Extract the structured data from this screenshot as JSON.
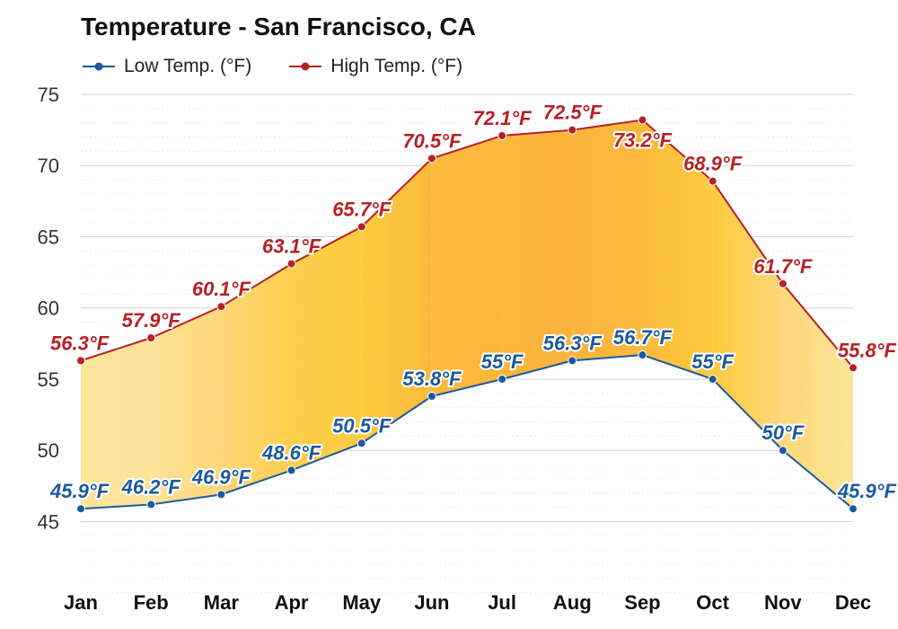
{
  "chart_data": {
    "type": "area",
    "title": "Temperature - San Francisco, CA",
    "categories": [
      "Jan",
      "Feb",
      "Mar",
      "Apr",
      "May",
      "Jun",
      "Jul",
      "Aug",
      "Sep",
      "Oct",
      "Nov",
      "Dec"
    ],
    "series": [
      {
        "name": "Low Temp. (°F)",
        "color": "#1a5a9e",
        "values": [
          45.9,
          46.2,
          46.9,
          48.6,
          50.5,
          53.8,
          55,
          56.3,
          56.7,
          55,
          50,
          45.9
        ],
        "labels": [
          "45.9°F",
          "46.2°F",
          "46.9°F",
          "48.6°F",
          "50.5°F",
          "53.8°F",
          "55°F",
          "56.3°F",
          "56.7°F",
          "55°F",
          "50°F",
          "45.9°F"
        ]
      },
      {
        "name": "High Temp. (°F)",
        "color": "#b72025",
        "values": [
          56.3,
          57.9,
          60.1,
          63.1,
          65.7,
          70.5,
          72.1,
          72.5,
          73.2,
          68.9,
          61.7,
          55.8
        ],
        "labels": [
          "56.3°F",
          "57.9°F",
          "60.1°F",
          "63.1°F",
          "65.7°F",
          "70.5°F",
          "72.1°F",
          "72.5°F",
          "73.2°F",
          "68.9°F",
          "61.7°F",
          "55.8°F"
        ]
      }
    ],
    "fill_colors": [
      "#fde59a",
      "#fde29a",
      "#fdd77a",
      "#fdcf4e",
      "#fdcb3e",
      "#fbba3c",
      "#fbb63c",
      "#fab43e",
      "#fbba3c",
      "#fdcb3e",
      "#fdd77a",
      "#fde59a"
    ],
    "yticks": [
      45,
      50,
      55,
      60,
      65,
      70,
      75
    ],
    "ylim": [
      42,
      75
    ],
    "grid": true,
    "legend_position": "top-left"
  }
}
